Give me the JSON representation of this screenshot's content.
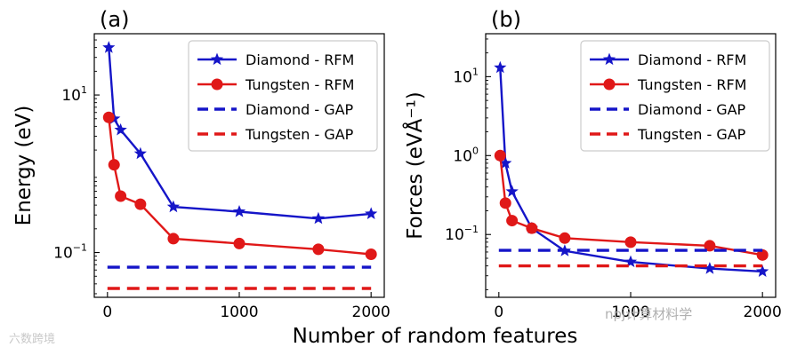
{
  "colors": {
    "diamond": "#1515c8",
    "tungsten": "#e01818",
    "axis": "#000000",
    "legend_border": "#cccccc"
  },
  "shared_xlabel": "Number of random features",
  "watermarks": {
    "left": "六数跨境",
    "right": "npj计算材料学"
  },
  "chart_data": [
    {
      "type": "line",
      "panel_label": "(a)",
      "ylabel": "Energy (eV)",
      "yscale": "log",
      "xlim": [
        -100,
        2100
      ],
      "ylim": [
        0.027,
        60
      ],
      "xticks": [
        0,
        1000,
        2000
      ],
      "xtick_labels": [
        "0",
        "1000",
        "2000"
      ],
      "yticks": [
        0.1,
        10
      ],
      "ytick_labels": [
        {
          "base": "10",
          "exp": "−1"
        },
        {
          "base": "10",
          "exp": "1"
        }
      ],
      "series": [
        {
          "name": "Diamond - RFM",
          "style": "line-star",
          "color": "#1515c8",
          "x": [
            10,
            50,
            100,
            250,
            500,
            1000,
            1600,
            2000
          ],
          "y": [
            40,
            5,
            3.6,
            1.8,
            0.38,
            0.33,
            0.27,
            0.31
          ]
        },
        {
          "name": "Tungsten - RFM",
          "style": "line-circle",
          "color": "#e01818",
          "x": [
            10,
            50,
            100,
            250,
            500,
            1000,
            1600,
            2000
          ],
          "y": [
            5.2,
            1.3,
            0.52,
            0.41,
            0.15,
            0.13,
            0.11,
            0.095
          ]
        },
        {
          "name": "Diamond - GAP",
          "style": "dashed",
          "color": "#1515c8",
          "x": [
            0,
            2000
          ],
          "y": [
            0.065,
            0.065
          ]
        },
        {
          "name": "Tungsten - GAP",
          "style": "dashed",
          "color": "#e01818",
          "x": [
            0,
            2000
          ],
          "y": [
            0.035,
            0.035
          ]
        }
      ],
      "legend": [
        "Diamond - RFM",
        "Tungsten - RFM",
        "Diamond - GAP",
        "Tungsten - GAP"
      ]
    },
    {
      "type": "line",
      "panel_label": "(b)",
      "ylabel": "Forces (eVÅ⁻¹)",
      "yscale": "log",
      "xlim": [
        -100,
        2100
      ],
      "ylim": [
        0.016,
        35
      ],
      "xticks": [
        0,
        1000,
        2000
      ],
      "xtick_labels": [
        "0",
        "1000",
        "2000"
      ],
      "yticks": [
        0.1,
        1,
        10
      ],
      "ytick_labels": [
        {
          "base": "10",
          "exp": "−1"
        },
        {
          "base": "10",
          "exp": "0"
        },
        {
          "base": "10",
          "exp": "1"
        }
      ],
      "series": [
        {
          "name": "Diamond - RFM",
          "style": "line-star",
          "color": "#1515c8",
          "x": [
            10,
            50,
            100,
            250,
            500,
            1000,
            1600,
            2000
          ],
          "y": [
            13,
            0.8,
            0.35,
            0.12,
            0.062,
            0.045,
            0.037,
            0.034
          ]
        },
        {
          "name": "Tungsten - RFM",
          "style": "line-circle",
          "color": "#e01818",
          "x": [
            10,
            50,
            100,
            250,
            500,
            1000,
            1600,
            2000
          ],
          "y": [
            1,
            0.25,
            0.15,
            0.12,
            0.09,
            0.08,
            0.072,
            0.055
          ]
        },
        {
          "name": "Diamond - GAP",
          "style": "dashed",
          "color": "#1515c8",
          "x": [
            0,
            2000
          ],
          "y": [
            0.063,
            0.063
          ]
        },
        {
          "name": "Tungsten - GAP",
          "style": "dashed",
          "color": "#e01818",
          "x": [
            0,
            2000
          ],
          "y": [
            0.04,
            0.04
          ]
        }
      ],
      "legend": [
        "Diamond - RFM",
        "Tungsten - RFM",
        "Diamond - GAP",
        "Tungsten - GAP"
      ]
    }
  ]
}
